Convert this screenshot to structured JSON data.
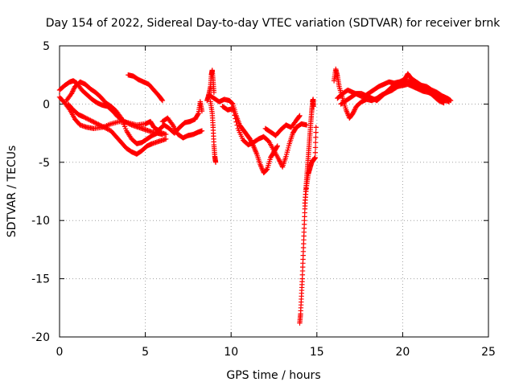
{
  "chart_data": {
    "type": "scatter",
    "title": "Day 154 of 2022, Sidereal Day-to-day VTEC variation (SDTVAR) for receiver brnk",
    "xlabel": "GPS time / hours",
    "ylabel": "SDTVAR / TECUs",
    "xlim": [
      0,
      25
    ],
    "ylim": [
      -20,
      5
    ],
    "x_ticks": [
      0,
      5,
      10,
      15,
      20,
      25
    ],
    "y_ticks": [
      5,
      0,
      -5,
      -10,
      -15,
      -20
    ],
    "x_tick_labels": [
      "0",
      "5",
      "10",
      "15",
      "20",
      "25"
    ],
    "y_tick_labels": [
      "5",
      "0",
      "-5",
      "-10",
      "-15",
      "-20"
    ],
    "grid": true,
    "marker": "+",
    "series_color": "#ff0000",
    "tracks": [
      {
        "name": "track-1",
        "points": [
          [
            0.0,
            0.6
          ],
          [
            0.3,
            0.1
          ],
          [
            0.6,
            -0.5
          ],
          [
            0.9,
            -1.3
          ],
          [
            1.2,
            -1.8
          ],
          [
            1.6,
            -2.0
          ],
          [
            2.0,
            -2.1
          ],
          [
            2.5,
            -2.0
          ],
          [
            3.0,
            -1.7
          ],
          [
            3.5,
            -1.5
          ],
          [
            4.0,
            -1.6
          ],
          [
            4.5,
            -1.8
          ],
          [
            5.0,
            -1.7
          ],
          [
            5.3,
            -1.5
          ],
          [
            5.5,
            -2.0
          ],
          [
            5.8,
            -2.3
          ]
        ]
      },
      {
        "name": "track-2",
        "points": [
          [
            0.0,
            1.2
          ],
          [
            0.3,
            1.6
          ],
          [
            0.6,
            1.9
          ],
          [
            0.8,
            2.0
          ],
          [
            1.0,
            1.8
          ],
          [
            1.3,
            1.2
          ],
          [
            1.6,
            0.8
          ],
          [
            1.9,
            0.4
          ],
          [
            2.2,
            0.1
          ],
          [
            2.5,
            -0.1
          ],
          [
            2.8,
            -0.2
          ],
          [
            3.1,
            -0.6
          ],
          [
            3.4,
            -1.1
          ],
          [
            3.8,
            -1.5
          ],
          [
            4.2,
            -1.8
          ],
          [
            4.6,
            -2.0
          ],
          [
            5.0,
            -2.2
          ],
          [
            5.4,
            -2.4
          ],
          [
            5.8,
            -2.4
          ],
          [
            6.2,
            -2.6
          ]
        ]
      },
      {
        "name": "track-3",
        "points": [
          [
            0.4,
            0.3
          ],
          [
            0.7,
            0.9
          ],
          [
            0.9,
            1.5
          ],
          [
            1.2,
            1.9
          ],
          [
            1.5,
            1.7
          ],
          [
            1.8,
            1.3
          ],
          [
            2.1,
            1.0
          ],
          [
            2.4,
            0.6
          ],
          [
            2.7,
            0.1
          ],
          [
            3.0,
            -0.2
          ],
          [
            3.3,
            -0.6
          ],
          [
            3.6,
            -1.2
          ],
          [
            3.9,
            -2.3
          ],
          [
            4.2,
            -3.0
          ],
          [
            4.5,
            -3.4
          ],
          [
            4.8,
            -3.3
          ],
          [
            5.1,
            -3.0
          ],
          [
            5.4,
            -2.7
          ],
          [
            5.7,
            -2.5
          ],
          [
            6.0,
            -2.6
          ]
        ]
      },
      {
        "name": "track-4",
        "points": [
          [
            0.5,
            0.0
          ],
          [
            0.8,
            -0.5
          ],
          [
            1.1,
            -0.9
          ],
          [
            1.4,
            -1.1
          ],
          [
            1.8,
            -1.4
          ],
          [
            2.2,
            -1.7
          ],
          [
            2.6,
            -2.0
          ],
          [
            3.0,
            -2.3
          ],
          [
            3.3,
            -2.8
          ],
          [
            3.6,
            -3.3
          ],
          [
            3.9,
            -3.8
          ],
          [
            4.2,
            -4.1
          ],
          [
            4.5,
            -4.3
          ],
          [
            4.8,
            -4.0
          ],
          [
            5.1,
            -3.6
          ],
          [
            5.4,
            -3.4
          ],
          [
            5.8,
            -3.2
          ],
          [
            6.2,
            -3.0
          ]
        ]
      },
      {
        "name": "track-5",
        "points": [
          [
            4.0,
            2.5
          ],
          [
            4.3,
            2.4
          ],
          [
            4.6,
            2.1
          ],
          [
            4.9,
            1.9
          ],
          [
            5.2,
            1.7
          ],
          [
            5.5,
            1.2
          ],
          [
            5.8,
            0.7
          ],
          [
            6.0,
            0.3
          ]
        ]
      },
      {
        "name": "track-6",
        "points": [
          [
            5.8,
            -2.2
          ],
          [
            6.1,
            -1.8
          ],
          [
            6.4,
            -2.1
          ],
          [
            6.7,
            -2.5
          ],
          [
            7.0,
            -2.0
          ],
          [
            7.3,
            -1.6
          ],
          [
            7.6,
            -1.5
          ],
          [
            7.9,
            -1.3
          ],
          [
            8.1,
            -0.8
          ],
          [
            8.2,
            0.2
          ],
          [
            8.3,
            -0.6
          ]
        ]
      },
      {
        "name": "track-7",
        "points": [
          [
            6.0,
            -1.5
          ],
          [
            6.3,
            -1.2
          ],
          [
            6.6,
            -1.8
          ],
          [
            6.9,
            -2.6
          ],
          [
            7.2,
            -2.9
          ],
          [
            7.5,
            -2.7
          ],
          [
            7.8,
            -2.6
          ],
          [
            8.1,
            -2.4
          ],
          [
            8.3,
            -2.3
          ]
        ]
      },
      {
        "name": "track-8",
        "points": [
          [
            8.6,
            0.3
          ],
          [
            8.7,
            0.8
          ],
          [
            8.8,
            1.5
          ],
          [
            8.85,
            2.5
          ],
          [
            8.9,
            2.9
          ],
          [
            8.95,
            2.0
          ],
          [
            9.0,
            1.0
          ]
        ]
      },
      {
        "name": "track-9",
        "points": [
          [
            8.8,
            0.2
          ],
          [
            8.9,
            -0.8
          ],
          [
            8.95,
            -2.0
          ],
          [
            9.0,
            -3.5
          ],
          [
            9.05,
            -4.5
          ],
          [
            9.1,
            -5.0
          ]
        ]
      },
      {
        "name": "track-10",
        "points": [
          [
            8.7,
            0.8
          ],
          [
            9.0,
            0.5
          ],
          [
            9.3,
            0.2
          ],
          [
            9.6,
            0.4
          ],
          [
            9.9,
            0.3
          ],
          [
            10.1,
            0.0
          ],
          [
            10.3,
            -1.0
          ],
          [
            10.5,
            -1.8
          ],
          [
            10.7,
            -2.2
          ],
          [
            10.9,
            -2.6
          ],
          [
            11.1,
            -3.0
          ],
          [
            11.3,
            -3.6
          ],
          [
            11.5,
            -4.3
          ],
          [
            11.7,
            -5.2
          ],
          [
            11.9,
            -5.9
          ],
          [
            12.1,
            -5.6
          ],
          [
            12.3,
            -4.6
          ],
          [
            12.5,
            -4.1
          ],
          [
            12.7,
            -3.6
          ]
        ]
      },
      {
        "name": "track-11",
        "points": [
          [
            9.5,
            -0.2
          ],
          [
            9.8,
            -0.5
          ],
          [
            10.1,
            -0.4
          ],
          [
            10.4,
            -2.1
          ],
          [
            10.7,
            -3.1
          ],
          [
            11.0,
            -3.5
          ],
          [
            11.3,
            -3.3
          ],
          [
            11.6,
            -3.0
          ],
          [
            11.9,
            -2.8
          ],
          [
            12.2,
            -3.2
          ],
          [
            12.5,
            -4.0
          ],
          [
            12.8,
            -4.8
          ],
          [
            13.0,
            -5.4
          ],
          [
            13.2,
            -4.5
          ],
          [
            13.4,
            -3.4
          ],
          [
            13.6,
            -2.5
          ],
          [
            13.8,
            -2.0
          ],
          [
            14.1,
            -1.7
          ],
          [
            14.4,
            -1.8
          ]
        ]
      },
      {
        "name": "track-12",
        "points": [
          [
            12.0,
            -2.1
          ],
          [
            12.3,
            -2.4
          ],
          [
            12.6,
            -2.7
          ],
          [
            12.9,
            -2.2
          ],
          [
            13.2,
            -1.8
          ],
          [
            13.5,
            -2.0
          ],
          [
            13.8,
            -1.4
          ],
          [
            14.0,
            -1.0
          ]
        ]
      },
      {
        "name": "track-13",
        "points": [
          [
            14.0,
            -18.8
          ],
          [
            14.05,
            -18.0
          ],
          [
            14.1,
            -16.5
          ],
          [
            14.15,
            -15.0
          ],
          [
            14.2,
            -13.0
          ],
          [
            14.25,
            -11.0
          ],
          [
            14.3,
            -9.0
          ],
          [
            14.35,
            -7.5
          ],
          [
            14.4,
            -6.5
          ],
          [
            14.45,
            -5.5
          ],
          [
            14.5,
            -4.5
          ],
          [
            14.55,
            -3.5
          ],
          [
            14.6,
            -2.5
          ],
          [
            14.65,
            -1.5
          ],
          [
            14.7,
            -0.6
          ],
          [
            14.75,
            0.2
          ],
          [
            14.78,
            0.4
          ],
          [
            14.8,
            -0.2
          ]
        ]
      },
      {
        "name": "track-14",
        "points": [
          [
            14.3,
            -8.5
          ],
          [
            14.4,
            -7.0
          ],
          [
            14.5,
            -6.0
          ],
          [
            14.6,
            -5.5
          ],
          [
            14.7,
            -5.0
          ],
          [
            14.8,
            -4.8
          ],
          [
            14.9,
            -4.6
          ],
          [
            14.95,
            -2.0
          ]
        ]
      },
      {
        "name": "track-15",
        "points": [
          [
            16.0,
            2.0
          ],
          [
            16.1,
            3.0
          ],
          [
            16.2,
            2.4
          ],
          [
            16.3,
            1.5
          ],
          [
            16.5,
            0.5
          ],
          [
            16.7,
            -0.5
          ],
          [
            16.9,
            -1.2
          ],
          [
            17.1,
            -0.8
          ],
          [
            17.3,
            -0.2
          ],
          [
            17.6,
            0.2
          ],
          [
            17.9,
            0.4
          ],
          [
            18.2,
            0.3
          ],
          [
            18.5,
            0.5
          ],
          [
            18.8,
            0.8
          ],
          [
            19.1,
            1.0
          ],
          [
            19.4,
            1.2
          ],
          [
            19.7,
            1.5
          ],
          [
            20.0,
            1.6
          ],
          [
            20.3,
            1.7
          ],
          [
            20.6,
            1.5
          ],
          [
            20.9,
            1.3
          ],
          [
            21.2,
            1.1
          ],
          [
            21.5,
            1.0
          ],
          [
            21.8,
            0.8
          ],
          [
            22.1,
            0.6
          ],
          [
            22.4,
            0.4
          ],
          [
            22.7,
            0.2
          ]
        ]
      },
      {
        "name": "track-16",
        "points": [
          [
            16.2,
            0.5
          ],
          [
            16.5,
            0.9
          ],
          [
            16.8,
            1.2
          ],
          [
            17.1,
            1.0
          ],
          [
            17.4,
            0.8
          ],
          [
            17.7,
            0.6
          ],
          [
            18.0,
            0.9
          ],
          [
            18.3,
            1.2
          ],
          [
            18.6,
            1.5
          ],
          [
            18.9,
            1.7
          ],
          [
            19.2,
            1.9
          ],
          [
            19.5,
            1.8
          ],
          [
            19.8,
            1.9
          ],
          [
            20.1,
            2.1
          ],
          [
            20.3,
            2.6
          ],
          [
            20.5,
            2.2
          ],
          [
            20.8,
            1.9
          ],
          [
            21.1,
            1.6
          ],
          [
            21.4,
            1.5
          ],
          [
            21.7,
            1.2
          ],
          [
            22.0,
            1.0
          ],
          [
            22.3,
            0.7
          ],
          [
            22.6,
            0.5
          ],
          [
            22.8,
            0.3
          ]
        ]
      },
      {
        "name": "track-17",
        "points": [
          [
            16.4,
            0.0
          ],
          [
            16.7,
            0.3
          ],
          [
            17.0,
            0.6
          ],
          [
            17.3,
            0.9
          ],
          [
            17.6,
            0.9
          ],
          [
            17.9,
            0.7
          ],
          [
            18.2,
            0.5
          ],
          [
            18.5,
            0.3
          ],
          [
            18.8,
            0.7
          ],
          [
            19.1,
            1.1
          ],
          [
            19.4,
            1.5
          ],
          [
            19.7,
            1.8
          ],
          [
            20.0,
            1.9
          ],
          [
            20.3,
            2.0
          ],
          [
            20.6,
            1.8
          ],
          [
            20.9,
            1.6
          ],
          [
            21.2,
            1.4
          ],
          [
            21.5,
            1.1
          ],
          [
            21.8,
            0.7
          ],
          [
            22.1,
            0.3
          ],
          [
            22.4,
            0.1
          ]
        ]
      }
    ]
  }
}
